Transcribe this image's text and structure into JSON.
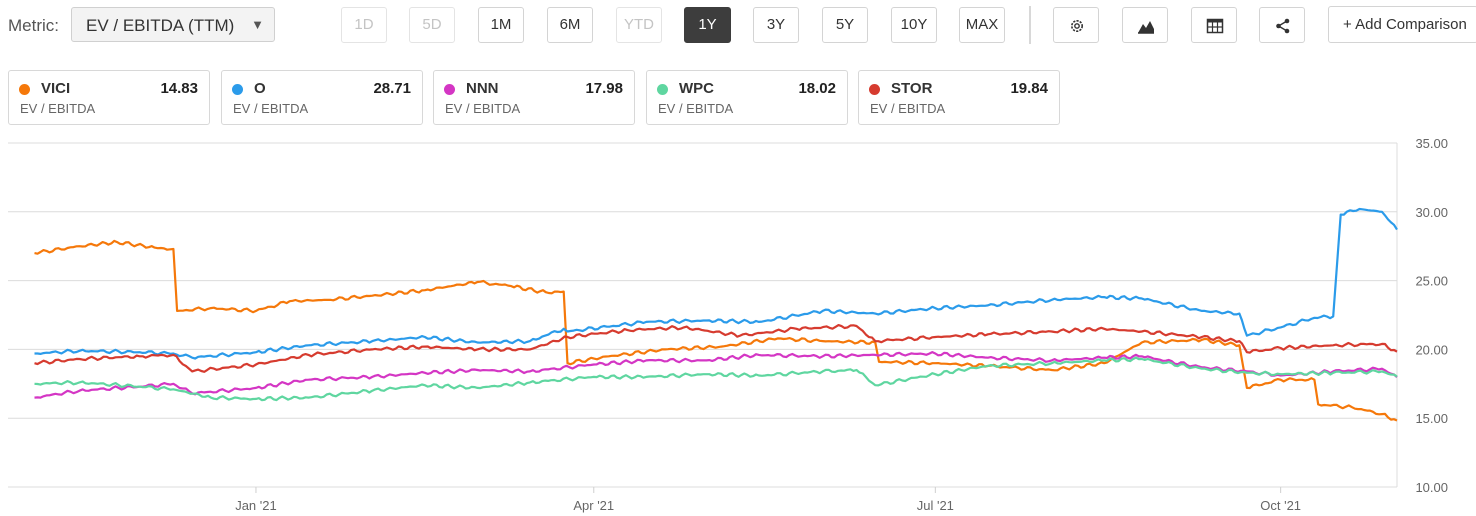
{
  "toolbar": {
    "metric_label": "Metric:",
    "metric_value": "EV / EBITDA (TTM)",
    "ranges": [
      {
        "label": "1D",
        "state": "disabled"
      },
      {
        "label": "5D",
        "state": "disabled"
      },
      {
        "label": "1M",
        "state": "enabled"
      },
      {
        "label": "6M",
        "state": "enabled"
      },
      {
        "label": "YTD",
        "state": "disabled"
      },
      {
        "label": "1Y",
        "state": "active"
      },
      {
        "label": "3Y",
        "state": "enabled"
      },
      {
        "label": "5Y",
        "state": "enabled"
      },
      {
        "label": "10Y",
        "state": "enabled"
      },
      {
        "label": "MAX",
        "state": "enabled"
      }
    ],
    "icons": [
      "gear-icon",
      "mountain-chart-icon",
      "table-icon",
      "share-icon"
    ],
    "add_comparison_label": "+ Add Comparison"
  },
  "legend": [
    {
      "ticker": "VICI",
      "value": "14.83",
      "metric": "EV / EBITDA",
      "color": "#f5780a"
    },
    {
      "ticker": "O",
      "value": "28.71",
      "metric": "EV / EBITDA",
      "color": "#2b9bea"
    },
    {
      "ticker": "NNN",
      "value": "17.98",
      "metric": "EV / EBITDA",
      "color": "#d436c4"
    },
    {
      "ticker": "WPC",
      "value": "18.02",
      "metric": "EV / EBITDA",
      "color": "#5fd6a0"
    },
    {
      "ticker": "STOR",
      "value": "19.84",
      "metric": "EV / EBITDA",
      "color": "#d63b2f"
    }
  ],
  "chart_data": {
    "type": "line",
    "title": "",
    "ylabel": "",
    "xlabel": "",
    "ylim": [
      10,
      35
    ],
    "yticks": [
      "35.00",
      "30.00",
      "25.00",
      "20.00",
      "15.00",
      "10.00"
    ],
    "xticks": [
      "Jan '21",
      "Apr '21",
      "Jul '21",
      "Oct '21"
    ],
    "x_range": [
      "2020-11-01",
      "2021-11-01"
    ],
    "axis_side": "right",
    "grid": "horizontal",
    "series": [
      {
        "name": "VICI",
        "color": "#f5780a",
        "points": [
          [
            "2020-11-03",
            27.0
          ],
          [
            "2020-11-15",
            27.5
          ],
          [
            "2020-11-25",
            27.8
          ],
          [
            "2020-12-05",
            27.4
          ],
          [
            "2020-12-10",
            27.3
          ],
          [
            "2020-12-11",
            22.8
          ],
          [
            "2020-12-20",
            23.0
          ],
          [
            "2021-01-01",
            22.8
          ],
          [
            "2021-01-10",
            23.5
          ],
          [
            "2021-01-20",
            23.6
          ],
          [
            "2021-02-01",
            23.9
          ],
          [
            "2021-02-15",
            24.3
          ],
          [
            "2021-03-01",
            24.9
          ],
          [
            "2021-03-10",
            24.6
          ],
          [
            "2021-03-20",
            24.1
          ],
          [
            "2021-03-24",
            24.2
          ],
          [
            "2021-03-25",
            19.0
          ],
          [
            "2021-04-05",
            19.5
          ],
          [
            "2021-04-20",
            20.0
          ],
          [
            "2021-05-05",
            20.2
          ],
          [
            "2021-05-20",
            20.8
          ],
          [
            "2021-06-01",
            20.6
          ],
          [
            "2021-06-15",
            20.5
          ],
          [
            "2021-06-16",
            19.1
          ],
          [
            "2021-07-01",
            19.0
          ],
          [
            "2021-07-15",
            18.8
          ],
          [
            "2021-08-01",
            18.5
          ],
          [
            "2021-08-15",
            19.0
          ],
          [
            "2021-08-25",
            20.5
          ],
          [
            "2021-09-10",
            20.7
          ],
          [
            "2021-09-20",
            20.3
          ],
          [
            "2021-09-22",
            17.2
          ],
          [
            "2021-10-01",
            17.8
          ],
          [
            "2021-10-10",
            17.8
          ],
          [
            "2021-10-11",
            16.0
          ],
          [
            "2021-10-20",
            15.8
          ],
          [
            "2021-10-28",
            15.3
          ],
          [
            "2021-11-01",
            14.83
          ]
        ]
      },
      {
        "name": "O",
        "color": "#2b9bea",
        "points": [
          [
            "2020-11-03",
            19.7
          ],
          [
            "2020-11-15",
            19.9
          ],
          [
            "2020-12-01",
            19.8
          ],
          [
            "2020-12-10",
            19.7
          ],
          [
            "2020-12-15",
            19.4
          ],
          [
            "2021-01-01",
            19.8
          ],
          [
            "2021-01-15",
            20.3
          ],
          [
            "2021-02-01",
            20.6
          ],
          [
            "2021-02-15",
            20.9
          ],
          [
            "2021-03-01",
            20.5
          ],
          [
            "2021-03-15",
            20.6
          ],
          [
            "2021-03-24",
            21.5
          ],
          [
            "2021-03-25",
            21.3
          ],
          [
            "2021-04-15",
            22.0
          ],
          [
            "2021-05-01",
            22.1
          ],
          [
            "2021-05-15",
            22.0
          ],
          [
            "2021-06-01",
            22.8
          ],
          [
            "2021-06-15",
            22.6
          ],
          [
            "2021-07-01",
            23.0
          ],
          [
            "2021-07-15",
            23.2
          ],
          [
            "2021-08-01",
            23.6
          ],
          [
            "2021-08-15",
            23.8
          ],
          [
            "2021-08-25",
            23.7
          ],
          [
            "2021-09-10",
            22.8
          ],
          [
            "2021-09-20",
            22.6
          ],
          [
            "2021-09-22",
            21.0
          ],
          [
            "2021-10-01",
            21.6
          ],
          [
            "2021-10-10",
            22.3
          ],
          [
            "2021-10-15",
            22.4
          ],
          [
            "2021-10-17",
            29.8
          ],
          [
            "2021-10-22",
            30.2
          ],
          [
            "2021-10-28",
            30.0
          ],
          [
            "2021-11-01",
            28.71
          ]
        ]
      },
      {
        "name": "NNN",
        "color": "#d436c4",
        "points": [
          [
            "2020-11-03",
            16.5
          ],
          [
            "2020-11-15",
            17.0
          ],
          [
            "2020-12-01",
            17.3
          ],
          [
            "2020-12-10",
            17.5
          ],
          [
            "2020-12-15",
            16.8
          ],
          [
            "2021-01-01",
            17.2
          ],
          [
            "2021-01-15",
            17.8
          ],
          [
            "2021-02-01",
            18.0
          ],
          [
            "2021-02-15",
            18.3
          ],
          [
            "2021-03-01",
            18.5
          ],
          [
            "2021-03-15",
            18.4
          ],
          [
            "2021-04-01",
            18.9
          ],
          [
            "2021-04-15",
            19.2
          ],
          [
            "2021-05-01",
            19.2
          ],
          [
            "2021-05-15",
            19.6
          ],
          [
            "2021-06-01",
            19.5
          ],
          [
            "2021-06-15",
            19.6
          ],
          [
            "2021-07-01",
            19.7
          ],
          [
            "2021-07-15",
            19.4
          ],
          [
            "2021-08-01",
            19.2
          ],
          [
            "2021-08-15",
            19.4
          ],
          [
            "2021-08-25",
            19.5
          ],
          [
            "2021-09-10",
            18.7
          ],
          [
            "2021-09-22",
            18.4
          ],
          [
            "2021-10-01",
            18.1
          ],
          [
            "2021-10-15",
            18.4
          ],
          [
            "2021-10-28",
            18.6
          ],
          [
            "2021-11-01",
            17.98
          ]
        ]
      },
      {
        "name": "WPC",
        "color": "#5fd6a0",
        "points": [
          [
            "2020-11-03",
            17.5
          ],
          [
            "2020-11-15",
            17.6
          ],
          [
            "2020-12-01",
            17.3
          ],
          [
            "2020-12-10",
            17.1
          ],
          [
            "2020-12-20",
            16.5
          ],
          [
            "2021-01-01",
            16.4
          ],
          [
            "2021-01-15",
            16.5
          ],
          [
            "2021-02-01",
            17.0
          ],
          [
            "2021-02-15",
            17.4
          ],
          [
            "2021-03-01",
            17.2
          ],
          [
            "2021-03-15",
            17.6
          ],
          [
            "2021-04-01",
            18.0
          ],
          [
            "2021-04-15",
            18.0
          ],
          [
            "2021-05-01",
            18.2
          ],
          [
            "2021-05-15",
            18.1
          ],
          [
            "2021-06-01",
            18.4
          ],
          [
            "2021-06-10",
            18.5
          ],
          [
            "2021-06-15",
            17.4
          ],
          [
            "2021-07-01",
            18.2
          ],
          [
            "2021-07-15",
            18.8
          ],
          [
            "2021-08-01",
            19.0
          ],
          [
            "2021-08-15",
            19.2
          ],
          [
            "2021-08-25",
            19.3
          ],
          [
            "2021-09-10",
            18.6
          ],
          [
            "2021-09-22",
            18.3
          ],
          [
            "2021-10-01",
            18.2
          ],
          [
            "2021-10-15",
            18.3
          ],
          [
            "2021-10-28",
            18.4
          ],
          [
            "2021-11-01",
            18.02
          ]
        ]
      },
      {
        "name": "STOR",
        "color": "#d63b2f",
        "points": [
          [
            "2020-11-03",
            19.0
          ],
          [
            "2020-11-15",
            19.3
          ],
          [
            "2020-12-01",
            19.5
          ],
          [
            "2020-12-10",
            19.6
          ],
          [
            "2020-12-15",
            18.4
          ],
          [
            "2021-01-01",
            18.9
          ],
          [
            "2021-01-15",
            19.6
          ],
          [
            "2021-02-01",
            20.0
          ],
          [
            "2021-02-15",
            20.2
          ],
          [
            "2021-03-01",
            20.0
          ],
          [
            "2021-03-15",
            20.0
          ],
          [
            "2021-03-25",
            20.9
          ],
          [
            "2021-04-10",
            21.4
          ],
          [
            "2021-04-25",
            21.6
          ],
          [
            "2021-05-10",
            21.0
          ],
          [
            "2021-05-25",
            21.5
          ],
          [
            "2021-06-10",
            21.7
          ],
          [
            "2021-06-15",
            20.6
          ],
          [
            "2021-07-01",
            20.9
          ],
          [
            "2021-07-15",
            21.1
          ],
          [
            "2021-08-01",
            21.3
          ],
          [
            "2021-08-15",
            21.5
          ],
          [
            "2021-08-25",
            21.3
          ],
          [
            "2021-09-10",
            20.9
          ],
          [
            "2021-09-20",
            20.6
          ],
          [
            "2021-09-22",
            19.8
          ],
          [
            "2021-10-01",
            20.1
          ],
          [
            "2021-10-15",
            20.3
          ],
          [
            "2021-10-28",
            20.4
          ],
          [
            "2021-11-01",
            19.84
          ]
        ]
      }
    ]
  }
}
